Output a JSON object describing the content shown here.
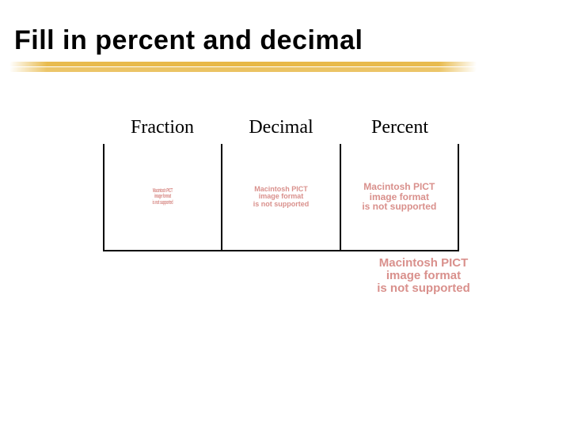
{
  "title": "Fill in percent and decimal",
  "underline_color": "#e0b43c",
  "table": {
    "headers": [
      "Fraction",
      "Decimal",
      "Percent"
    ],
    "header_font": "Times New Roman",
    "header_fontsize": 24,
    "border_color": "#000000",
    "cells": [
      {
        "error_lines": [
          "Macintosh PICT",
          "image format",
          "is not supported"
        ],
        "size": "narrow"
      },
      {
        "error_lines": [
          "Macintosh PICT",
          "image format",
          "is not supported"
        ],
        "size": "small"
      },
      {
        "error_lines": [
          "Macintosh PICT",
          "image format",
          "is not supported"
        ],
        "size": "med"
      }
    ]
  },
  "overflow_error": {
    "lines": [
      "Macintosh PICT",
      "image format",
      "is not supported"
    ],
    "size": "big"
  },
  "error_text_color": "#d9908c",
  "background_color": "#ffffff"
}
